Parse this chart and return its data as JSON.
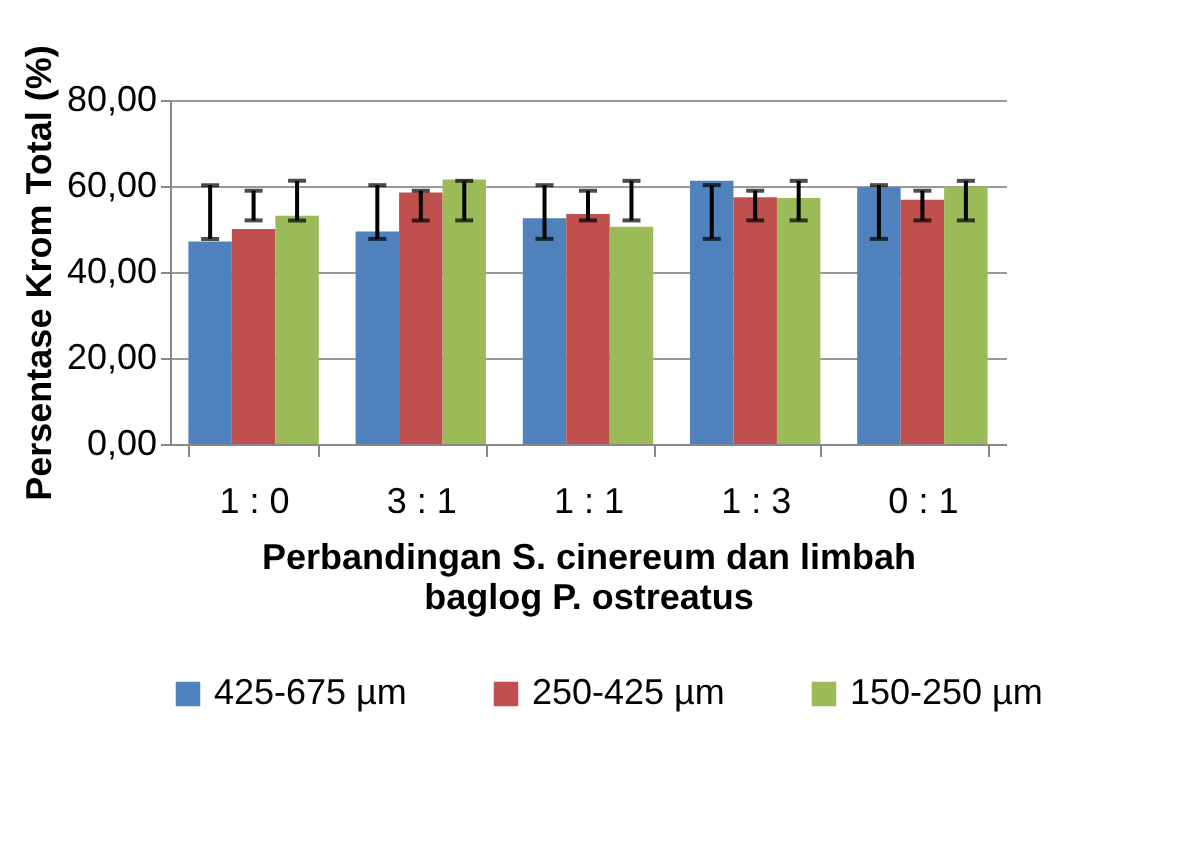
{
  "chart_data": {
    "type": "bar",
    "xlabel": "Perbandingan S. cinereum dan limbah baglog P. ostreatus",
    "ylabel": "Persentase Krom Total (%)",
    "categories": [
      "1 : 0",
      "3 : 1",
      "1 : 1",
      "1 : 3",
      "0 : 1"
    ],
    "series": [
      {
        "name": "425-675 µm",
        "color": "#4f81bd",
        "values": [
          47.1,
          49.4,
          52.5,
          61.2,
          59.7
        ],
        "errors": [
          [
            47.7,
            60.2
          ],
          [
            47.7,
            60.2
          ],
          [
            47.7,
            60.2
          ],
          [
            47.7,
            60.2
          ],
          [
            47.7,
            60.2
          ]
        ]
      },
      {
        "name": "250-425 µm",
        "color": "#c0504d",
        "values": [
          50.0,
          58.5,
          53.5,
          57.4,
          56.8
        ],
        "errors": [
          [
            52.0,
            58.9
          ],
          [
            52.0,
            58.9
          ],
          [
            52.0,
            58.9
          ],
          [
            52.0,
            58.9
          ],
          [
            52.0,
            58.9
          ]
        ]
      },
      {
        "name": "150-250 µm",
        "color": "#9bbb59",
        "values": [
          53.1,
          61.5,
          50.5,
          57.2,
          59.8
        ],
        "errors": [
          [
            52.0,
            61.2
          ],
          [
            52.0,
            61.2
          ],
          [
            52.0,
            61.2
          ],
          [
            52.0,
            61.2
          ],
          [
            52.0,
            61.2
          ]
        ]
      }
    ],
    "ylim": [
      0,
      80
    ],
    "yticks": [
      {
        "value": 0,
        "label": "0,00"
      },
      {
        "value": 20,
        "label": "20,00"
      },
      {
        "value": 40,
        "label": "40,00"
      },
      {
        "value": 60,
        "label": "60,00"
      },
      {
        "value": 80,
        "label": "80,00"
      }
    ],
    "grid": "y",
    "legend": "bottom"
  }
}
